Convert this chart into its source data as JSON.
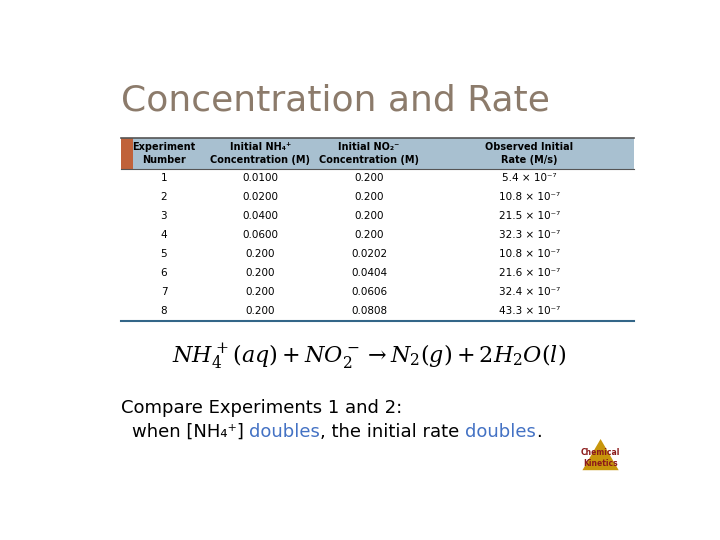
{
  "title": "Concentration and Rate",
  "title_color": "#8c7b6b",
  "title_fontsize": 26,
  "bg_color": "#ffffff",
  "header_bar_color": "#a8c0d0",
  "header_bar_left_color": "#c0623a",
  "table_headers": [
    "Experiment\nNumber",
    "Initial NH4+\nConcentration (M)",
    "Initial NO2-\nConcentration (M)",
    "Observed Initial\nRate (M/s)"
  ],
  "table_data": [
    [
      "1",
      "0.0100",
      "0.200",
      "5.4 × 10⁻⁷"
    ],
    [
      "2",
      "0.0200",
      "0.200",
      "10.8 × 10⁻⁷"
    ],
    [
      "3",
      "0.0400",
      "0.200",
      "21.5 × 10⁻⁷"
    ],
    [
      "4",
      "0.0600",
      "0.200",
      "32.3 × 10⁻⁷"
    ],
    [
      "5",
      "0.200",
      "0.0202",
      "10.8 × 10⁻⁷"
    ],
    [
      "6",
      "0.200",
      "0.0404",
      "21.6 × 10⁻⁷"
    ],
    [
      "7",
      "0.200",
      "0.0606",
      "32.4 × 10⁻⁷"
    ],
    [
      "8",
      "0.200",
      "0.0808",
      "43.3 × 10⁻⁷"
    ]
  ],
  "equation_latex": "$NH_4^+(aq) + NO_2^- \\rightarrow N_2(g) + 2H_2O(l)$",
  "compare_line1": "Compare Experiments 1 and 2:",
  "logo_triangle_color": "#c8960c",
  "logo_text_color": "#8b1a1a",
  "table_text_color": "#000000",
  "table_font_size": 7.5,
  "compare_fontsize": 13,
  "blue_color": "#4472c4"
}
